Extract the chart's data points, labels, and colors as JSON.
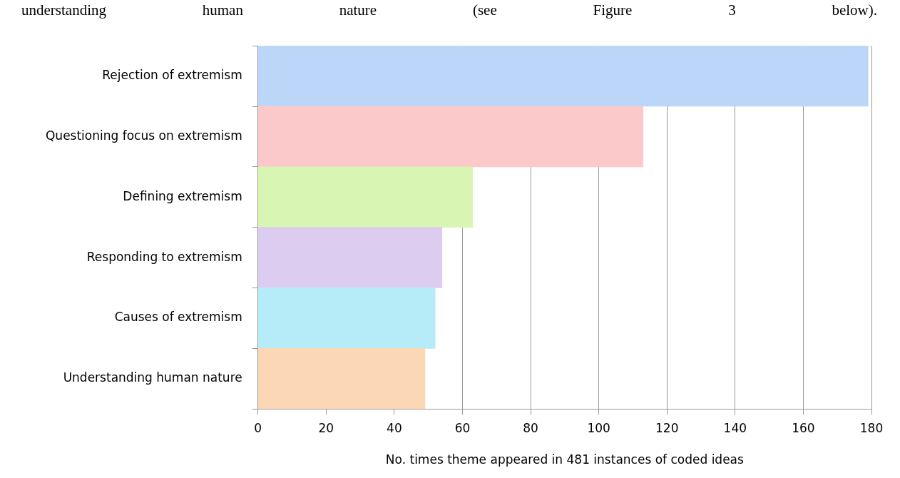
{
  "chart_data": {
    "type": "bar",
    "orientation": "horizontal",
    "categories": [
      "Rejection of extremism",
      "Questioning focus on extremism",
      "Defining extremism",
      "Responding to extremism",
      "Causes of extremism",
      "Understanding human nature"
    ],
    "values": [
      179,
      113,
      63,
      54,
      52,
      49
    ],
    "colors": [
      "#bcd6fa",
      "#fbc9c9",
      "#d9f5b3",
      "#dccdf0",
      "#b5ecf8",
      "#fcd7b6"
    ],
    "xlim": [
      0,
      180
    ],
    "xticks": [
      0,
      20,
      40,
      60,
      80,
      100,
      120,
      140,
      160,
      180
    ],
    "xlabel": "No. times theme appeared in 481 instances of coded ideas",
    "grid": "x",
    "legend": false,
    "annotations": [
      "understanding human nature (see Figure 3 below)."
    ]
  }
}
